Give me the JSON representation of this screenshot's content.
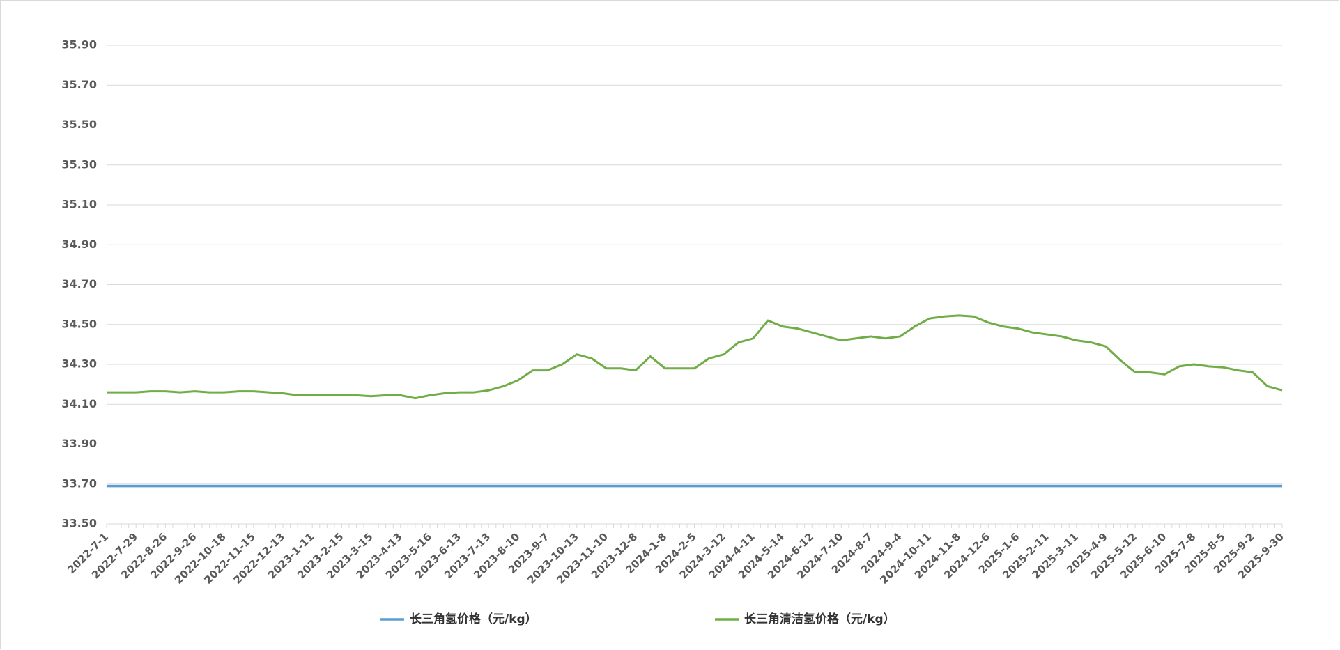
{
  "chart_data": {
    "type": "line",
    "categories": [
      "2022-7-1",
      null,
      "2022-7-29",
      null,
      "2022-8-26",
      null,
      "2022-9-26",
      null,
      "2022-10-18",
      null,
      "2022-11-15",
      null,
      "2022-12-13",
      null,
      "2023-1-11",
      null,
      "2023-2-15",
      null,
      "2023-3-15",
      null,
      "2023-4-13",
      null,
      "2023-5-16",
      null,
      "2023-6-13",
      null,
      "2023-7-13",
      null,
      "2023-8-10",
      null,
      "2023-9-7",
      null,
      "2023-10-13",
      null,
      "2023-11-10",
      null,
      "2023-12-8",
      null,
      "2024-1-8",
      null,
      "2024-2-5",
      null,
      "2024-3-12",
      null,
      "2024-4-11",
      null,
      "2024-5-14",
      null,
      "2024-6-12",
      null,
      "2024-7-10",
      null,
      "2024-8-7",
      null,
      "2024-9-4",
      null,
      "2024-10-11",
      null,
      "2024-11-8",
      null,
      "2024-12-6",
      null,
      "2025-1-6",
      null,
      "2025-2-11",
      null,
      "2025-3-11",
      null,
      "2025-4-9",
      null,
      "2025-5-12",
      null,
      "2025-6-10",
      null,
      "2025-7-8",
      null,
      "2025-8-5",
      null,
      "2025-9-2",
      null,
      "2025-9-30"
    ],
    "series": [
      {
        "name": "长三角氢价格（元/kg）",
        "color": "#5b9bd5",
        "values": [
          33.69,
          33.69,
          33.69,
          33.69,
          33.69,
          33.69,
          33.69,
          33.69,
          33.69,
          33.69,
          33.69,
          33.69,
          33.69,
          33.69,
          33.69,
          33.69,
          33.69,
          33.69,
          33.69,
          33.69,
          33.69,
          33.69,
          33.69,
          33.69,
          33.69,
          33.69,
          33.69,
          33.69,
          33.69,
          33.69,
          33.69,
          33.69,
          33.69,
          33.69,
          33.69,
          33.69,
          33.69,
          33.69,
          33.69,
          33.69,
          33.69,
          33.69,
          33.69,
          33.69,
          33.69,
          33.69,
          33.69,
          33.69,
          33.69,
          33.69,
          33.69,
          33.69,
          33.69,
          33.69,
          33.69,
          33.69,
          33.69,
          33.69,
          33.69,
          33.69,
          33.69,
          33.69,
          33.69,
          33.69,
          33.69,
          33.69,
          33.69,
          33.69,
          33.69,
          33.69,
          33.69,
          33.69,
          33.69,
          33.69,
          33.69,
          33.69,
          33.69,
          33.69,
          33.69,
          33.69,
          33.69
        ]
      },
      {
        "name": "长三角清洁氢价格（元/kg）",
        "color": "#70ad47",
        "values": [
          34.16,
          34.16,
          34.16,
          34.165,
          34.165,
          34.16,
          34.165,
          34.16,
          34.16,
          34.165,
          34.165,
          34.16,
          34.155,
          34.145,
          34.145,
          34.145,
          34.145,
          34.145,
          34.14,
          34.145,
          34.145,
          34.13,
          34.145,
          34.155,
          34.16,
          34.16,
          34.17,
          34.19,
          34.22,
          34.27,
          34.27,
          34.3,
          34.35,
          34.33,
          34.28,
          34.28,
          34.27,
          34.34,
          34.28,
          34.28,
          34.28,
          34.33,
          34.35,
          34.41,
          34.43,
          34.52,
          34.49,
          34.48,
          34.46,
          34.44,
          34.42,
          34.43,
          34.44,
          34.43,
          34.44,
          34.49,
          34.53,
          34.54,
          34.545,
          34.54,
          34.51,
          34.49,
          34.48,
          34.46,
          34.45,
          34.44,
          34.42,
          34.41,
          34.39,
          34.32,
          34.26,
          34.26,
          34.25,
          34.29,
          34.3,
          34.29,
          34.285,
          34.27,
          34.26,
          34.19,
          34.17
        ]
      }
    ],
    "ylim": [
      33.5,
      35.9
    ],
    "yticks": [
      {
        "value": 33.5,
        "label": "33.50"
      },
      {
        "value": 33.7,
        "label": "33.70"
      },
      {
        "value": 33.9,
        "label": "33.90"
      },
      {
        "value": 34.1,
        "label": "34.10"
      },
      {
        "value": 34.3,
        "label": "34.30"
      },
      {
        "value": 34.5,
        "label": "34.50"
      },
      {
        "value": 34.7,
        "label": "34.70"
      },
      {
        "value": 34.9,
        "label": "34.90"
      },
      {
        "value": 35.1,
        "label": "35.10"
      },
      {
        "value": 35.3,
        "label": "35.30"
      },
      {
        "value": 35.5,
        "label": "35.50"
      },
      {
        "value": 35.7,
        "label": "35.70"
      },
      {
        "value": 35.9,
        "label": "35.90"
      }
    ],
    "grid": true,
    "legend": "bottom"
  }
}
